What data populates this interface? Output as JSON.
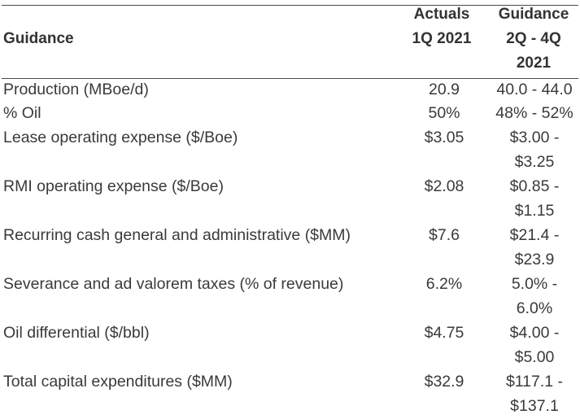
{
  "header": {
    "title": "Guidance",
    "actuals_line1": "Actuals",
    "actuals_line2": "1Q 2021",
    "guidance_line1": "Guidance",
    "guidance_line2": "2Q - 4Q",
    "guidance_line3": "2021"
  },
  "rows": [
    {
      "label": "Production (MBoe/d)",
      "actual": "20.9",
      "guidance_1": "40.0 - 44.0",
      "guidance_2": ""
    },
    {
      "label": "% Oil",
      "actual": "50%",
      "guidance_1": "48% - 52%",
      "guidance_2": ""
    },
    {
      "label": "Lease operating expense ($/Boe)",
      "actual": "$3.05",
      "guidance_1": "$3.00 -",
      "guidance_2": "$3.25"
    },
    {
      "label": "RMI operating expense ($/Boe)",
      "actual": "$2.08",
      "guidance_1": "$0.85 -",
      "guidance_2": "$1.15"
    },
    {
      "label": "Recurring cash general and administrative ($MM)",
      "actual": "$7.6",
      "guidance_1": "$21.4 -",
      "guidance_2": "$23.9"
    },
    {
      "label": "Severance and ad valorem taxes (% of revenue)",
      "actual": "6.2%",
      "guidance_1": "5.0% -",
      "guidance_2": "6.0%"
    },
    {
      "label": "Oil differential ($/bbl)",
      "actual": "$4.75",
      "guidance_1": "$4.00 -",
      "guidance_2": "$5.00"
    },
    {
      "label": "Total capital expenditures ($MM)",
      "actual": "$32.9",
      "guidance_1": "$117.1 -",
      "guidance_2": "$137.1"
    }
  ]
}
